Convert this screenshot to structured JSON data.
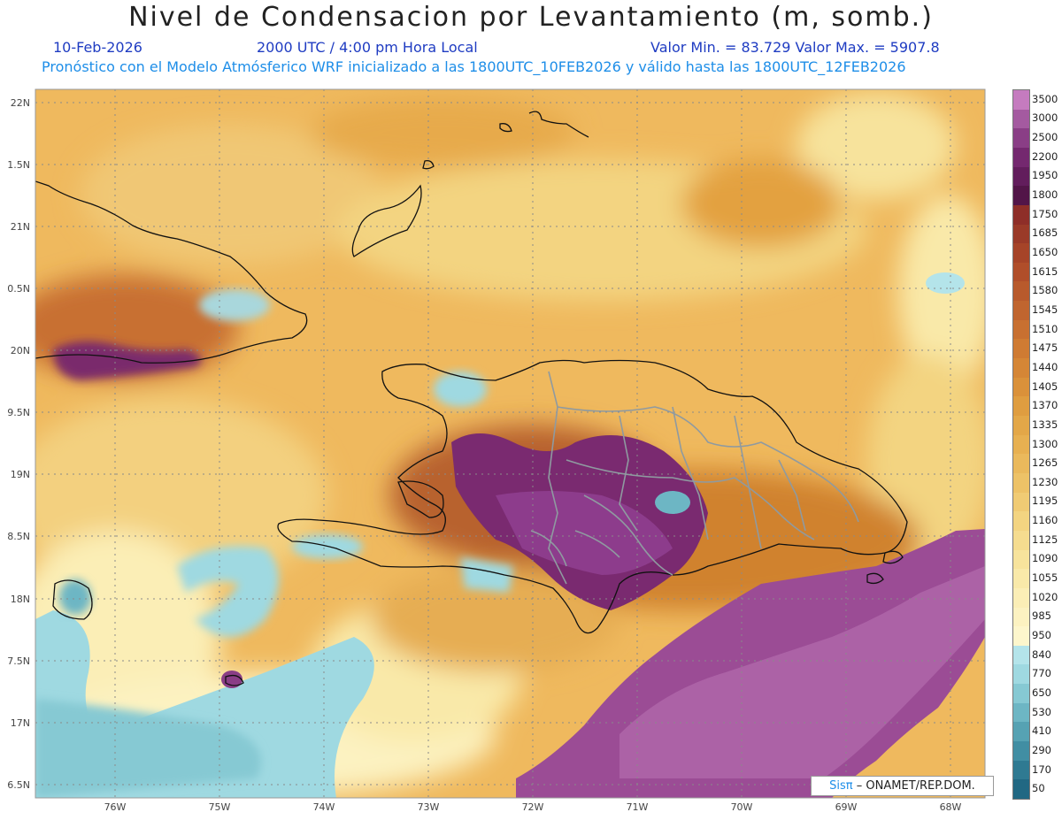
{
  "title": "Nivel de Condensacion por Levantamiento (m, somb.)",
  "date": "10-Feb-2026",
  "time": "2000 UTC / 4:00 pm Hora Local",
  "range": "Valor Min. = 83.729   Valor Max. = 5907.8",
  "model": "Pronóstico con el Modelo Atmósferico WRF inicializado a las 1800UTC_10FEB2026 y válido hasta las  1800UTC_12FEB2026",
  "credit_brand": "Sisπ",
  "credit_rest": "– ONAMET/REP.DOM.",
  "lat_labels": [
    "22N",
    "1.5N",
    "21N",
    "0.5N",
    "20N",
    "9.5N",
    "19N",
    "8.5N",
    "18N",
    "7.5N",
    "17N",
    "6.5N"
  ],
  "lon_labels": [
    "76W",
    "75W",
    "74W",
    "73W",
    "72W",
    "71W",
    "70W",
    "69W",
    "68W"
  ],
  "legend": {
    "levels": [
      "3500",
      "3000",
      "2500",
      "2200",
      "1950",
      "1800",
      "1750",
      "1685",
      "1650",
      "1615",
      "1580",
      "1545",
      "1510",
      "1475",
      "1440",
      "1405",
      "1370",
      "1335",
      "1300",
      "1265",
      "1230",
      "1195",
      "1160",
      "1125",
      "1090",
      "1055",
      "1020",
      "985",
      "950",
      "840",
      "770",
      "650",
      "530",
      "410",
      "290",
      "170",
      "50"
    ],
    "colors": [
      "#c57bbf",
      "#a45aa0",
      "#8a3e86",
      "#74286f",
      "#621d5c",
      "#521548",
      "#8e2e28",
      "#9a3a28",
      "#a64428",
      "#b04e2a",
      "#b85a2c",
      "#c0652f",
      "#c87031",
      "#cf7b33",
      "#d58636",
      "#da913a",
      "#df9d40",
      "#e3a748",
      "#e7b051",
      "#eab95c",
      "#edc267",
      "#f0cb74",
      "#f3d481",
      "#f5dc8f",
      "#f7e39c",
      "#f9e9a9",
      "#fbeeb6",
      "#fcf2c1",
      "#fdf6cc",
      "#b4e4ea",
      "#9fd9e1",
      "#86c9d3",
      "#6db6c4",
      "#56a2b3",
      "#418ea3",
      "#2f7a92",
      "#216883"
    ]
  }
}
